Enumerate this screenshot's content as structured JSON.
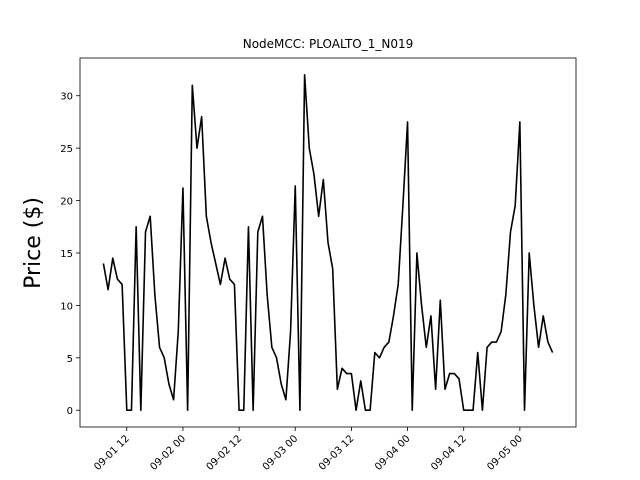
{
  "chart_data": {
    "type": "line",
    "title": "NodeMCC: PLOALTO_1_N019",
    "ylabel": "Price ($)",
    "x": [
      "09-01 07",
      "09-01 08",
      "09-01 09",
      "09-01 10",
      "09-01 11",
      "09-01 12",
      "09-01 13",
      "09-01 14",
      "09-01 15",
      "09-01 16",
      "09-01 17",
      "09-01 18",
      "09-01 19",
      "09-01 20",
      "09-01 21",
      "09-01 22",
      "09-01 23",
      "09-02 00",
      "09-02 01",
      "09-02 02",
      "09-02 03",
      "09-02 04",
      "09-02 05",
      "09-02 06",
      "09-02 07",
      "09-02 08",
      "09-02 09",
      "09-02 10",
      "09-02 11",
      "09-02 12",
      "09-02 13",
      "09-02 14",
      "09-02 15",
      "09-02 16",
      "09-02 17",
      "09-02 18",
      "09-02 19",
      "09-02 20",
      "09-02 21",
      "09-02 22",
      "09-02 23",
      "09-03 00",
      "09-03 01",
      "09-03 02",
      "09-03 03",
      "09-03 04",
      "09-03 05",
      "09-03 06",
      "09-03 07",
      "09-03 08",
      "09-03 09",
      "09-03 10",
      "09-03 11",
      "09-03 12",
      "09-03 13",
      "09-03 14",
      "09-03 15",
      "09-03 16",
      "09-03 17",
      "09-03 18",
      "09-03 19",
      "09-03 20",
      "09-03 21",
      "09-03 22",
      "09-03 23",
      "09-04 00",
      "09-04 01",
      "09-04 02",
      "09-04 03",
      "09-04 04",
      "09-04 05",
      "09-04 06",
      "09-04 07",
      "09-04 08",
      "09-04 09",
      "09-04 10",
      "09-04 11",
      "09-04 12",
      "09-04 13",
      "09-04 14",
      "09-04 15",
      "09-04 16",
      "09-04 17",
      "09-04 18",
      "09-04 19",
      "09-04 20",
      "09-04 21",
      "09-04 22",
      "09-04 23",
      "09-05 00",
      "09-05 01",
      "09-05 02",
      "09-05 03",
      "09-05 04",
      "09-05 05",
      "09-05 06",
      "09-05 07"
    ],
    "series": [
      {
        "color": "#000000",
        "values": [
          14,
          11.5,
          14.5,
          12.5,
          12,
          0,
          0,
          17.5,
          0,
          17,
          18.5,
          11,
          6,
          5,
          2.5,
          1,
          7.5,
          21.2,
          0,
          31,
          25,
          28,
          18.5,
          16,
          14,
          12,
          14.5,
          12.5,
          12,
          0,
          0,
          17.5,
          0,
          17,
          18.5,
          11,
          6,
          5,
          2.5,
          1,
          7.5,
          21.4,
          0,
          32,
          25,
          22.5,
          18.5,
          22,
          16,
          13.5,
          2,
          4,
          3.5,
          3.5,
          0,
          2.8,
          0,
          0,
          5.5,
          5,
          6,
          6.5,
          9,
          12,
          19.5,
          27.5,
          0,
          15,
          10,
          6,
          9,
          2,
          10.5,
          2,
          3.5,
          3.5,
          3,
          0,
          0,
          0,
          5.5,
          0,
          6,
          6.5,
          6.5,
          7.5,
          11,
          17,
          19.5,
          27.5,
          0,
          15,
          10,
          6,
          9,
          6.5,
          5.5
        ]
      }
    ],
    "xlim": [
      "09-01 02",
      "09-05 12"
    ],
    "xticks": [
      "09-01 12",
      "09-02 00",
      "09-02 12",
      "09-03 00",
      "09-03 12",
      "09-04 00",
      "09-04 12",
      "09-05 00"
    ],
    "ylim": [
      -1.6,
      33.6
    ],
    "yticks": [
      0,
      5,
      10,
      15,
      20,
      25,
      30
    ],
    "grid": false
  }
}
